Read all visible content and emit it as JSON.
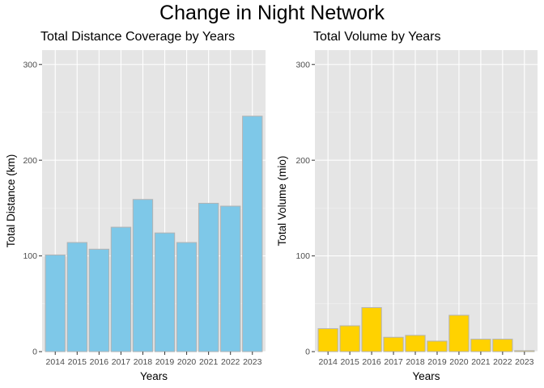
{
  "title": "Change in Night Network",
  "chart_data": [
    {
      "type": "bar",
      "title": "Total Distance Coverage by Years",
      "xlabel": "Years",
      "ylabel": "Total Distance (km)",
      "categories": [
        "2014",
        "2015",
        "2016",
        "2017",
        "2018",
        "2019",
        "2020",
        "2021",
        "2022",
        "2023"
      ],
      "values": [
        101,
        114,
        107,
        130,
        159,
        124,
        114,
        155,
        152,
        246
      ],
      "ylim": [
        0,
        315
      ],
      "yticks": [
        0,
        100,
        200,
        300
      ],
      "bar_color": "#7EC8E8",
      "grid": true
    },
    {
      "type": "bar",
      "title": "Total Volume by Years",
      "xlabel": "Years",
      "ylabel": "Total Volume (mio)",
      "categories": [
        "2014",
        "2015",
        "2016",
        "2017",
        "2018",
        "2019",
        "2020",
        "2021",
        "2022",
        "2023"
      ],
      "values": [
        24,
        27,
        46,
        15,
        17,
        11,
        38,
        13,
        13,
        1
      ],
      "ylim": [
        0,
        315
      ],
      "yticks": [
        0,
        100,
        200,
        300
      ],
      "bar_color": "#FFD200",
      "grid": true
    }
  ]
}
